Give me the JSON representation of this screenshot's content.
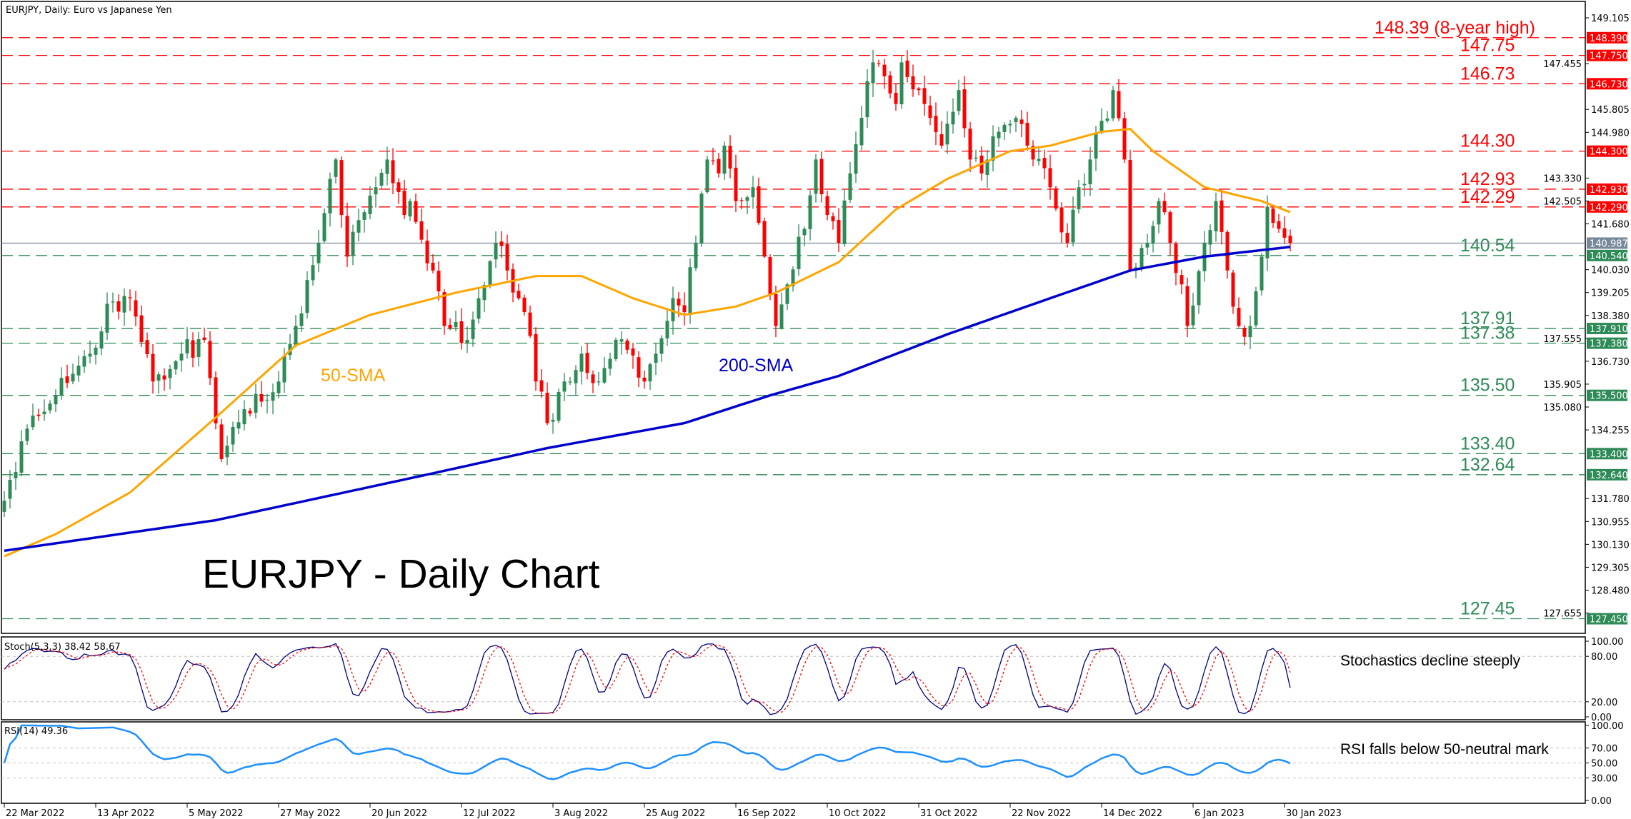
{
  "header": {
    "title": "EURJPY, Daily:  Euro vs Japanese Yen"
  },
  "annotations": {
    "chart_title": "EURJPY - Daily Chart",
    "sma50_label": "50-SMA",
    "sma200_label": "200-SMA",
    "stoch_note": "Stochastics decline steeply",
    "rsi_note": "RSI falls below 50-neutral mark"
  },
  "colors": {
    "bull": "#2e8b57",
    "bear": "#ff0000",
    "sma50": "#ffa500",
    "sma200": "#0000cd",
    "resistance": "#ff0000",
    "support": "#2e8b57",
    "current": "#778899",
    "stoch_main": "#000080",
    "stoch_signal": "#ff0000",
    "rsi": "#1e90ff"
  },
  "chart_data": [
    {
      "type": "candlestick",
      "title": "EURJPY, Daily",
      "current_price": {
        "value": 140.987,
        "label": "140.987"
      },
      "y_ticks": [
        "149.105",
        "147.455",
        "145.805",
        "144.980",
        "143.330",
        "142.505",
        "141.680",
        "140.030",
        "139.205",
        "138.380",
        "137.555",
        "136.730",
        "135.905",
        "135.080",
        "134.255",
        "131.780",
        "130.955",
        "130.130",
        "129.305",
        "128.480",
        "127.655"
      ],
      "x_ticks": [
        {
          "day": 0,
          "label": "22 Mar 2022"
        },
        {
          "day": 16,
          "label": "13 Apr 2022"
        },
        {
          "day": 32,
          "label": "5 May 2022"
        },
        {
          "day": 48,
          "label": "27 May 2022"
        },
        {
          "day": 64,
          "label": "20 Jun 2022"
        },
        {
          "day": 80,
          "label": "12 Jul 2022"
        },
        {
          "day": 96,
          "label": "3 Aug 2022"
        },
        {
          "day": 112,
          "label": "25 Aug 2022"
        },
        {
          "day": 128,
          "label": "16 Sep 2022"
        },
        {
          "day": 144,
          "label": "10 Oct 2022"
        },
        {
          "day": 160,
          "label": "31 Oct 2022"
        },
        {
          "day": 176,
          "label": "22 Nov 2022"
        },
        {
          "day": 192,
          "label": "14 Dec 2022"
        },
        {
          "day": 208,
          "label": "6 Jan 2023"
        },
        {
          "day": 224,
          "label": "30 Jan 2023"
        }
      ],
      "levels": [
        {
          "value": 148.39,
          "badge": "148.390",
          "label": "148.39 (8-year high)",
          "kind": "resistance"
        },
        {
          "value": 147.75,
          "badge": "147.750",
          "label": "147.75",
          "kind": "resistance"
        },
        {
          "value": 146.73,
          "badge": "146.730",
          "label": "146.73",
          "kind": "resistance"
        },
        {
          "value": 144.3,
          "badge": "144.300",
          "label": "144.30",
          "kind": "resistance"
        },
        {
          "value": 142.93,
          "badge": "142.930",
          "label": "142.93",
          "kind": "resistance"
        },
        {
          "value": 142.29,
          "badge": "142.290",
          "label": "142.29",
          "kind": "resistance"
        },
        {
          "value": 140.54,
          "badge": "140.540",
          "label": "140.54",
          "kind": "support"
        },
        {
          "value": 137.91,
          "badge": "137.910",
          "label": "137.91",
          "kind": "support"
        },
        {
          "value": 137.38,
          "badge": "137.380",
          "label": "137.38",
          "kind": "support"
        },
        {
          "value": 135.5,
          "badge": "135.500",
          "label": "135.50",
          "kind": "support"
        },
        {
          "value": 133.4,
          "badge": "133.400",
          "label": "133.40",
          "kind": "support"
        },
        {
          "value": 132.64,
          "badge": "132.640",
          "label": "132.64",
          "kind": "support"
        },
        {
          "value": 127.45,
          "badge": "127.450",
          "label": "127.45",
          "kind": "support"
        }
      ],
      "close_path": [
        [
          0,
          131.7
        ],
        [
          4,
          134.3
        ],
        [
          9,
          135.5
        ],
        [
          15,
          137
        ],
        [
          18,
          138.8
        ],
        [
          22,
          139
        ],
        [
          26,
          136
        ],
        [
          31,
          137
        ],
        [
          35,
          137.5
        ],
        [
          38,
          133.2
        ],
        [
          42,
          135
        ],
        [
          48,
          136
        ],
        [
          51,
          138
        ],
        [
          55,
          141
        ],
        [
          57,
          143.3
        ],
        [
          58,
          144
        ],
        [
          59,
          142
        ],
        [
          60,
          140.5
        ],
        [
          65,
          143
        ],
        [
          67,
          144
        ],
        [
          70,
          142
        ],
        [
          71,
          142.5
        ],
        [
          75,
          140
        ],
        [
          77,
          138
        ],
        [
          81,
          137.5
        ],
        [
          83,
          139
        ],
        [
          86,
          141
        ],
        [
          88,
          140
        ],
        [
          91,
          138.5
        ],
        [
          93,
          136
        ],
        [
          95,
          134.5
        ],
        [
          98,
          136
        ],
        [
          101,
          137
        ],
        [
          104,
          136
        ],
        [
          107,
          137.5
        ],
        [
          112,
          136
        ],
        [
          114,
          137
        ],
        [
          117,
          139
        ],
        [
          119,
          138.5
        ],
        [
          121,
          141
        ],
        [
          123,
          144
        ],
        [
          125,
          143.5
        ],
        [
          126,
          144.5
        ],
        [
          128,
          142.5
        ],
        [
          131,
          143
        ],
        [
          133,
          140.5
        ],
        [
          135,
          138
        ],
        [
          137,
          139.5
        ],
        [
          140,
          141.5
        ],
        [
          142,
          144
        ],
        [
          144,
          142
        ],
        [
          146,
          141
        ],
        [
          148,
          143.5
        ],
        [
          150,
          145.5
        ],
        [
          152,
          147.5
        ],
        [
          154,
          147
        ],
        [
          156,
          146
        ],
        [
          157,
          147.5
        ],
        [
          160,
          146.5
        ],
        [
          162,
          145.5
        ],
        [
          164,
          144.5
        ],
        [
          167,
          146.5
        ],
        [
          169,
          144
        ],
        [
          171,
          143.5
        ],
        [
          174,
          145
        ],
        [
          177,
          145.5
        ],
        [
          179,
          144.5
        ],
        [
          183,
          143
        ],
        [
          186,
          141
        ],
        [
          188,
          143
        ],
        [
          190,
          144
        ],
        [
          194,
          146.5
        ],
        [
          196,
          144
        ],
        [
          197,
          140
        ],
        [
          200,
          141
        ],
        [
          202,
          142.5
        ],
        [
          204,
          141
        ],
        [
          206,
          139.5
        ],
        [
          207,
          138
        ],
        [
          210,
          141
        ],
        [
          212,
          142.5
        ],
        [
          214,
          140
        ],
        [
          216,
          138
        ],
        [
          218,
          138
        ],
        [
          220,
          140.5
        ],
        [
          221,
          142.3
        ],
        [
          223,
          141.5
        ],
        [
          225,
          140.987
        ]
      ],
      "sma50_path": [
        [
          0,
          129.7
        ],
        [
          9,
          130.5
        ],
        [
          22,
          132.0
        ],
        [
          37,
          134.7
        ],
        [
          51,
          137.3
        ],
        [
          64,
          138.4
        ],
        [
          79,
          139.2
        ],
        [
          93,
          139.8
        ],
        [
          101,
          139.8
        ],
        [
          110,
          139.0
        ],
        [
          119,
          138.4
        ],
        [
          128,
          138.7
        ],
        [
          135,
          139.2
        ],
        [
          146,
          140.3
        ],
        [
          156,
          142.2
        ],
        [
          165,
          143.3
        ],
        [
          176,
          144.3
        ],
        [
          183,
          144.5
        ],
        [
          192,
          145.0
        ],
        [
          197,
          145.1
        ],
        [
          201,
          144.3
        ],
        [
          210,
          143.0
        ],
        [
          220,
          142.5
        ],
        [
          225,
          142.1
        ]
      ],
      "sma200_path": [
        [
          0,
          129.9
        ],
        [
          37,
          131
        ],
        [
          73,
          132.6
        ],
        [
          95,
          133.6
        ],
        [
          119,
          134.5
        ],
        [
          134,
          135.5
        ],
        [
          146,
          136.2
        ],
        [
          165,
          137.7
        ],
        [
          183,
          139.0
        ],
        [
          197,
          140.0
        ],
        [
          210,
          140.5
        ],
        [
          225,
          140.85
        ]
      ]
    },
    {
      "type": "line",
      "title": "Stoch(5,3,3) 38.42 58.67",
      "main": 38.42,
      "signal": 58.67,
      "ylim": [
        0,
        100
      ],
      "y_ticks": [
        "100.00",
        "80.00",
        "20.00",
        "0.00"
      ],
      "levels": [
        80,
        20
      ]
    },
    {
      "type": "line",
      "title": "RSI(14) 49.36",
      "value": 49.36,
      "ylim": [
        0,
        100
      ],
      "y_ticks": [
        "100.00",
        "70.00",
        "50.00",
        "30.00",
        "0.00"
      ],
      "levels": [
        70,
        50,
        30
      ]
    }
  ]
}
